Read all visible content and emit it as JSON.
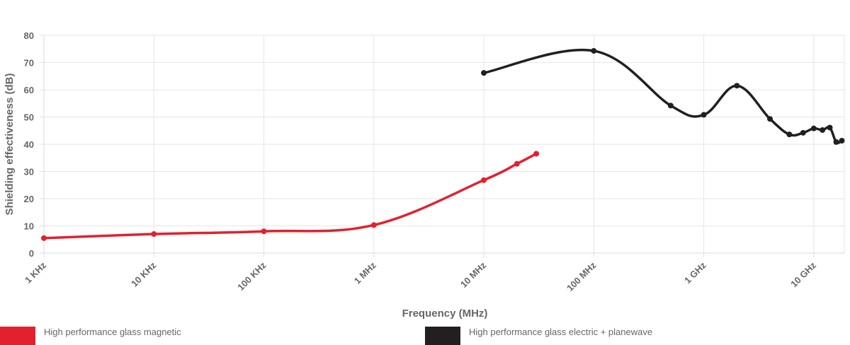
{
  "chart_data": {
    "type": "line",
    "xscale": "log",
    "xlabel": "Frequency (MHz)",
    "ylabel": "Shielding effectiveness (dB)",
    "ylim": [
      0,
      80
    ],
    "yticks": [
      "0",
      "10",
      "20",
      "30",
      "40",
      "50",
      "60",
      "70",
      "80"
    ],
    "xticks": [
      {
        "label": "1 KHz",
        "value": 0.001
      },
      {
        "label": "10 KHz",
        "value": 0.01
      },
      {
        "label": "100 KHz",
        "value": 0.1
      },
      {
        "label": "1 MHz",
        "value": 1
      },
      {
        "label": "10 MHz",
        "value": 10
      },
      {
        "label": "100 MHz",
        "value": 100
      },
      {
        "label": "1 GHz",
        "value": 1000
      },
      {
        "label": "10 GHz",
        "value": 10000
      }
    ],
    "grid": true,
    "legend_position": "bottom",
    "series": [
      {
        "name": "High performance glass magnetic",
        "color": "#e3212e",
        "x": [
          0.001,
          0.01,
          0.1,
          1,
          10,
          20,
          30
        ],
        "y": [
          5.5,
          7,
          8,
          10.3,
          26.8,
          32.8,
          36.5
        ]
      },
      {
        "name": "High performance glass electric + planewave",
        "color": "#231f20",
        "x": [
          10,
          100,
          500,
          1000,
          2000,
          4000,
          6000,
          8000,
          10000,
          12000,
          14000,
          16000,
          18000
        ],
        "y": [
          66.2,
          74.3,
          54.2,
          50.8,
          61.5,
          49.3,
          43.6,
          44.2,
          45.8,
          45.2,
          46.1,
          40.8,
          41.3
        ]
      }
    ]
  }
}
